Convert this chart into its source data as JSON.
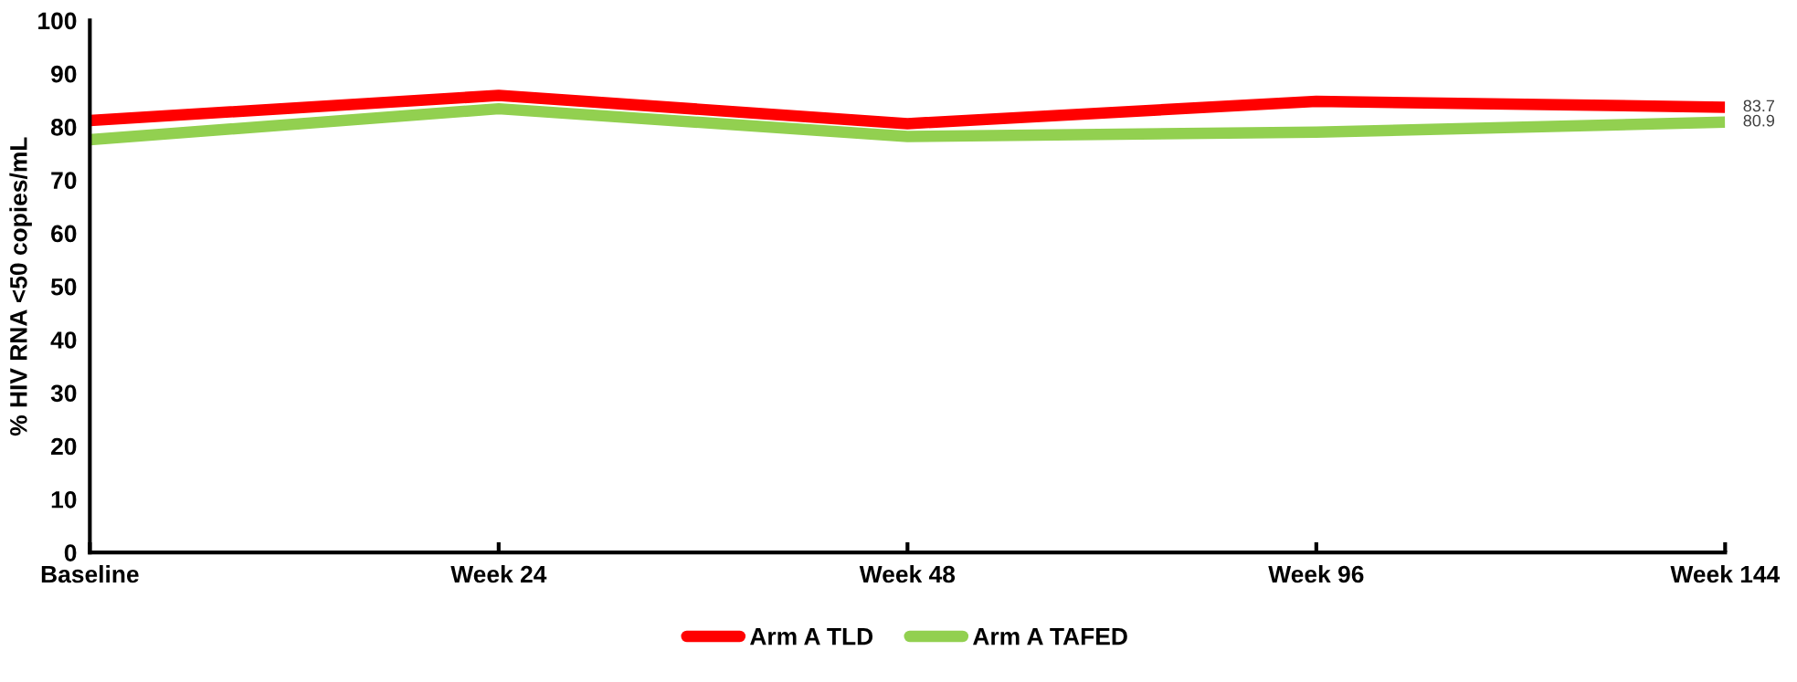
{
  "chart_data": {
    "type": "line",
    "ylabel": "% HIV RNA <50 copies/mL",
    "categories": [
      "Baseline",
      "Week 24",
      "Week 48",
      "Week 96",
      "Week 144"
    ],
    "series": [
      {
        "name": "Arm A TLD",
        "color": "#ff0000",
        "values": [
          81.2,
          85.9,
          80.6,
          84.8,
          83.7
        ],
        "value_labels": [
          null,
          null,
          null,
          null,
          "83.7"
        ]
      },
      {
        "name": "Arm A TAFED",
        "color": "#92d050",
        "values": [
          77.6,
          83.4,
          78.2,
          79.0,
          80.9
        ],
        "value_labels": [
          null,
          null,
          null,
          null,
          "80.9"
        ]
      }
    ],
    "ylim": [
      0,
      100
    ],
    "yticks": [
      0,
      10,
      20,
      30,
      40,
      50,
      60,
      70,
      80,
      90,
      100
    ],
    "grid": false,
    "legend": "bottom",
    "marker": "none",
    "line_style": "solid"
  }
}
